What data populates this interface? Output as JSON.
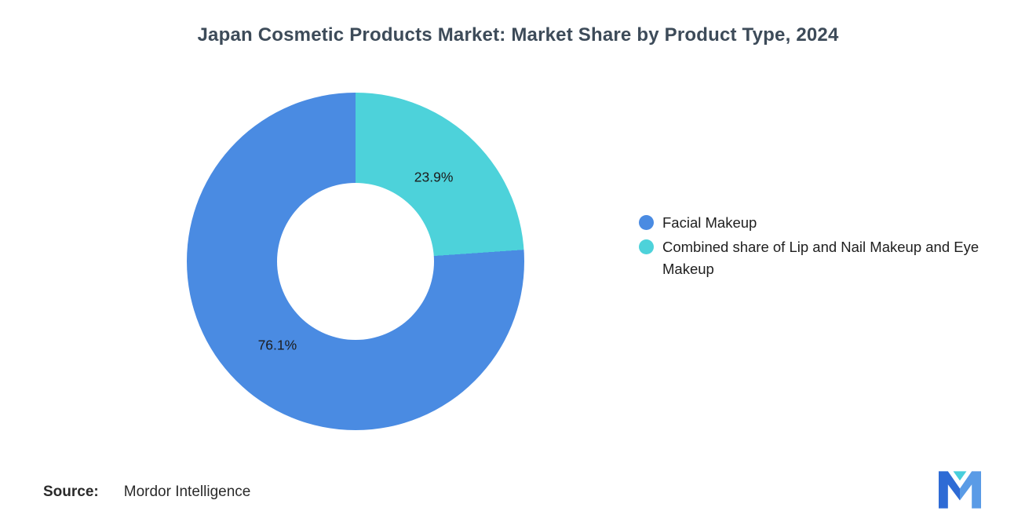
{
  "chart_data": {
    "type": "pie",
    "donut": true,
    "title": "Japan Cosmetic Products Market: Market Share by Product Type, 2024",
    "legend_position": "right",
    "grid": false,
    "slices": [
      {
        "name": "Facial Makeup",
        "value": 76.1,
        "label": "76.1%",
        "color": "#4a8be2"
      },
      {
        "name": "Combined share of Lip and Nail Makeup and Eye Makeup",
        "value": 23.9,
        "label": "23.9%",
        "color": "#4dd2da"
      }
    ],
    "draw_order": [
      1,
      0
    ]
  },
  "footer": {
    "source_label": "Source:",
    "source_value": "Mordor Intelligence"
  },
  "branding": {
    "logo": "mordor-intelligence-logo",
    "logo_blue": "#2e6bd5",
    "logo_light_blue": "#5a9be6",
    "logo_teal": "#47cedc"
  }
}
